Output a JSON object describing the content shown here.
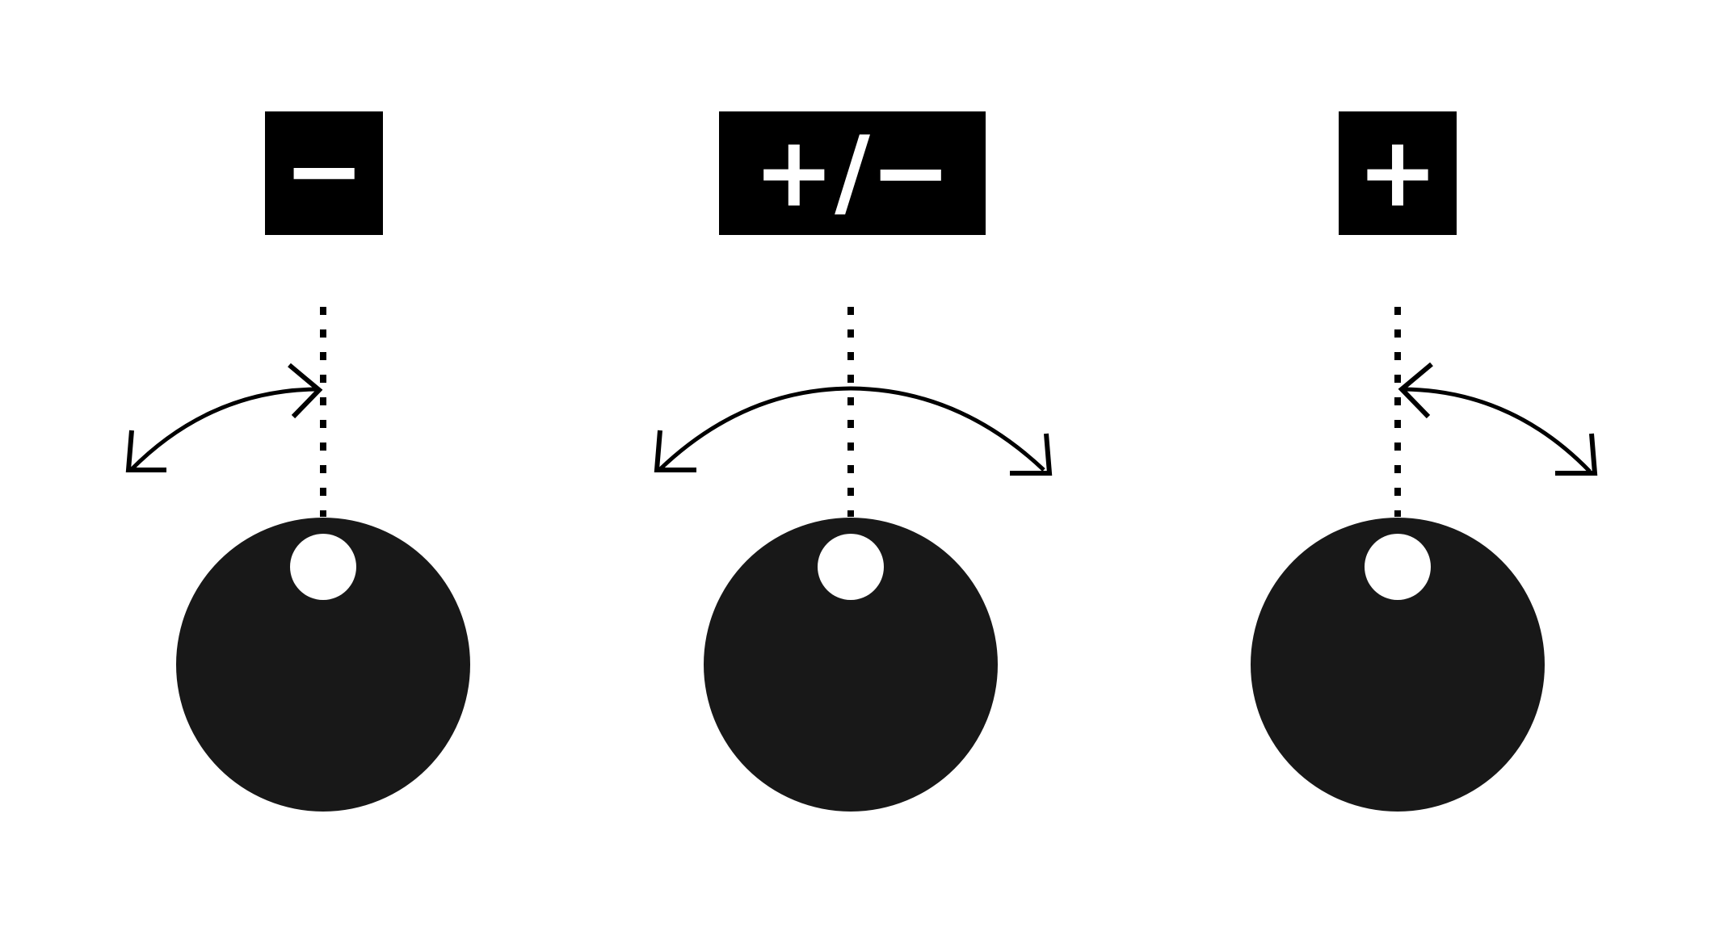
{
  "knobs": [
    {
      "id": "negative",
      "label": "−",
      "description_icon": "knob-turn-left-only"
    },
    {
      "id": "both",
      "label": "+/−",
      "description_icon": "knob-turn-both-ways"
    },
    {
      "id": "positive",
      "label": "+",
      "description_icon": "knob-turn-right-only"
    }
  ],
  "colors": {
    "background": "#ffffff",
    "label_box": "#000000",
    "label_text": "#ffffff",
    "knob_body": "#181818",
    "knob_indicator": "#ffffff",
    "lines": "#000000"
  }
}
